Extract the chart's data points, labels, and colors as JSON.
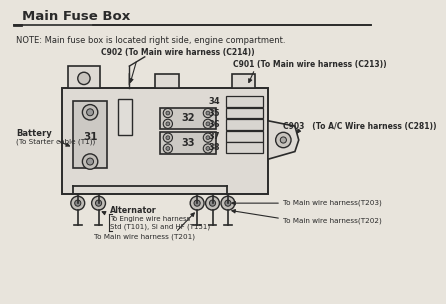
{
  "title": "Main Fuse Box",
  "note": "NOTE: Main fuse box is located right side, engine compartment.",
  "bg_color": "#e8e4dc",
  "line_color": "#2a2a2a",
  "title_line_color": "#1a1a1a",
  "box_face": "#dedad4",
  "fuse_face": "#ccc9c4",
  "relay_face": "#d4d1cc",
  "c902_text": "C902 (To Main wire harness (C214))",
  "c901_text": "C901 (To Main wire harness (C213))",
  "c903_text": "C903   (To A/C Wire harness (C281))",
  "battery_text1": "Battery",
  "battery_text2": "(To Starter cable (T1))",
  "alt_text1": "Alternator",
  "alt_text2": "To Engine wire harness",
  "alt_text3": "Std (T101), Si and HF (T151)",
  "t201_text": "To Main wire harness (T201)",
  "t202_text": "To Main wire harness(T202)",
  "t203_text": "To Main wire harness(T203)"
}
